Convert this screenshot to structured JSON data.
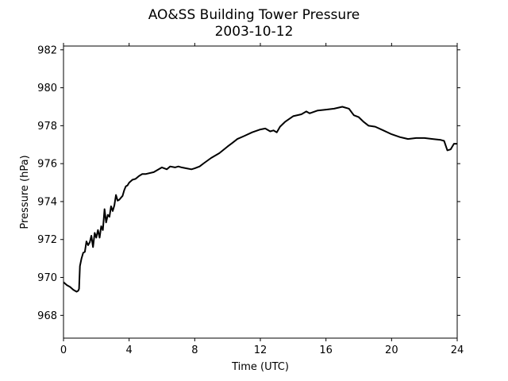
{
  "chart_data": {
    "type": "line",
    "title": "AO&SS Building Tower Pressure",
    "subtitle": "2003-10-12",
    "xlabel": "Time (UTC)",
    "ylabel": "Pressure (hPa)",
    "xlim": [
      0,
      24
    ],
    "ylim": [
      966.8,
      982.2
    ],
    "xticks": [
      0,
      4,
      8,
      12,
      16,
      20,
      24
    ],
    "yticks": [
      968,
      970,
      972,
      974,
      976,
      978,
      980,
      982
    ],
    "grid": false,
    "line_color": "#000000",
    "series": [
      {
        "x": [
          0,
          0.2,
          0.4,
          0.6,
          0.8,
          0.9,
          0.95,
          1.0,
          1.1,
          1.2,
          1.3,
          1.4,
          1.5,
          1.6,
          1.7,
          1.8,
          1.9,
          2.0,
          2.1,
          2.2,
          2.3,
          2.4,
          2.5,
          2.6,
          2.7,
          2.8,
          2.9,
          3.0,
          3.1,
          3.2,
          3.3,
          3.4,
          3.5,
          3.6,
          3.7,
          3.8,
          3.9,
          4.0,
          4.2,
          4.4,
          4.6,
          4.8,
          5.0,
          5.5,
          6.0,
          6.3,
          6.5,
          6.8,
          7.0,
          7.2,
          7.5,
          7.8,
          8.0,
          8.3,
          8.6,
          9.0,
          9.5,
          10.0,
          10.3,
          10.6,
          11.0,
          11.5,
          12.0,
          12.3,
          12.6,
          12.8,
          13.0,
          13.2,
          13.5,
          14.0,
          14.5,
          14.8,
          15.0,
          15.5,
          16.0,
          16.5,
          17.0,
          17.4,
          17.7,
          18.0,
          18.3,
          18.6,
          19.0,
          19.5,
          20.0,
          20.5,
          21.0,
          21.5,
          22.0,
          22.5,
          23.0,
          23.2,
          23.4,
          23.6,
          23.8,
          24.0
        ],
        "y": [
          969.75,
          969.6,
          969.5,
          969.35,
          969.25,
          969.3,
          969.4,
          970.6,
          971.0,
          971.3,
          971.35,
          971.9,
          971.7,
          971.85,
          972.2,
          971.6,
          972.35,
          972.1,
          972.5,
          972.1,
          972.7,
          972.5,
          973.6,
          972.9,
          973.3,
          973.2,
          973.75,
          973.5,
          973.8,
          974.35,
          974.05,
          974.1,
          974.2,
          974.3,
          974.6,
          974.8,
          974.85,
          975.0,
          975.15,
          975.2,
          975.35,
          975.45,
          975.45,
          975.55,
          975.8,
          975.7,
          975.85,
          975.8,
          975.85,
          975.8,
          975.75,
          975.7,
          975.75,
          975.85,
          976.05,
          976.3,
          976.55,
          976.9,
          977.1,
          977.3,
          977.45,
          977.65,
          977.8,
          977.85,
          977.7,
          977.75,
          977.65,
          977.95,
          978.2,
          978.5,
          978.6,
          978.75,
          978.65,
          978.8,
          978.85,
          978.9,
          979.0,
          978.9,
          978.55,
          978.45,
          978.2,
          978.0,
          977.95,
          977.75,
          977.55,
          977.4,
          977.3,
          977.35,
          977.35,
          977.3,
          977.25,
          977.2,
          976.7,
          976.75,
          977.05,
          977.05
        ]
      }
    ]
  }
}
